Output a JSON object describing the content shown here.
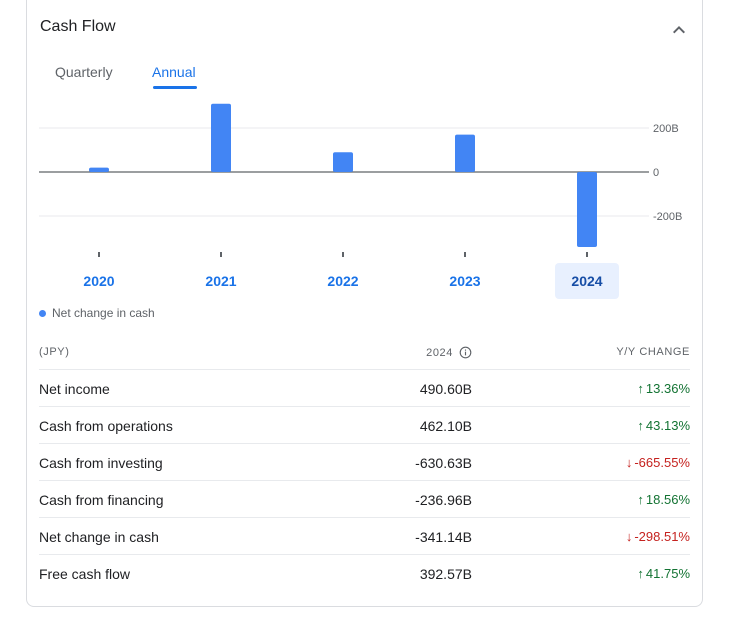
{
  "title": "Cash Flow",
  "tabs": [
    {
      "label": "Quarterly",
      "active": false
    },
    {
      "label": "Annual",
      "active": true
    }
  ],
  "chart_data": {
    "type": "bar",
    "categories": [
      "2020",
      "2021",
      "2022",
      "2023",
      "2024"
    ],
    "series": [
      {
        "name": "Net change in cash",
        "values": [
          20,
          310,
          90,
          170,
          -341.14
        ]
      }
    ],
    "y_ticks": [
      {
        "value": 200,
        "label": "200B"
      },
      {
        "value": 0,
        "label": "0"
      },
      {
        "value": -200,
        "label": "-200B"
      }
    ],
    "ylim": [
      -341.14,
      310
    ],
    "selected_category": "2024",
    "color": "#4285f4",
    "grid": true,
    "legend_position": "bottom-left"
  },
  "legend": {
    "label": "Net change in cash",
    "color": "#4285f4"
  },
  "table": {
    "headers": {
      "label": "(JPY)",
      "year": "2024",
      "change": "Y/Y CHANGE"
    },
    "rows": [
      {
        "label": "Net income",
        "value": "490.60B",
        "change": "13.36%",
        "dir": "up"
      },
      {
        "label": "Cash from operations",
        "value": "462.10B",
        "change": "43.13%",
        "dir": "up"
      },
      {
        "label": "Cash from investing",
        "value": "-630.63B",
        "change": "-665.55%",
        "dir": "down"
      },
      {
        "label": "Cash from financing",
        "value": "-236.96B",
        "change": "18.56%",
        "dir": "up"
      },
      {
        "label": "Net change in cash",
        "value": "-341.14B",
        "change": "-298.51%",
        "dir": "down"
      },
      {
        "label": "Free cash flow",
        "value": "392.57B",
        "change": "41.75%",
        "dir": "up"
      }
    ]
  }
}
